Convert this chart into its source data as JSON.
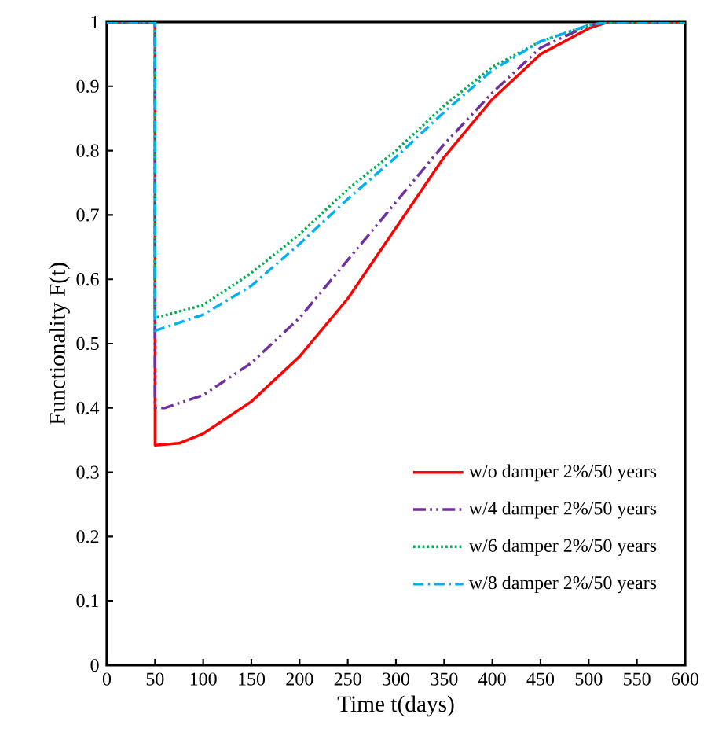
{
  "chart_data": {
    "type": "line",
    "xlabel": "Time t(days)",
    "ylabel": "Functionality F(t)",
    "xlim": [
      0,
      600
    ],
    "xticks": [
      0,
      50,
      100,
      150,
      200,
      250,
      300,
      350,
      400,
      450,
      500,
      550,
      600
    ],
    "ylim": [
      0,
      1
    ],
    "yticks": [
      0,
      0.1,
      0.2,
      0.3,
      0.4,
      0.5,
      0.6,
      0.7,
      0.8,
      0.9,
      1
    ],
    "grid": false,
    "legend": "bottom right",
    "marker": "none",
    "series": [
      {
        "name": "w/o damper 2%/50 years",
        "color": "#ff0000",
        "line_style": "solid",
        "x": [
          0,
          50,
          50,
          75,
          100,
          150,
          200,
          250,
          300,
          350,
          400,
          450,
          500,
          520,
          600
        ],
        "values": [
          1,
          1,
          0.342,
          0.345,
          0.36,
          0.41,
          0.48,
          0.57,
          0.68,
          0.79,
          0.88,
          0.95,
          0.99,
          1,
          1
        ]
      },
      {
        "name": "w/4 damper 2%/50 years",
        "color": "#7030a0",
        "line_style": "dashdotdot",
        "x": [
          0,
          50,
          50,
          60,
          100,
          150,
          200,
          250,
          300,
          350,
          400,
          450,
          500,
          520,
          600
        ],
        "values": [
          1,
          1,
          0.4,
          0.4,
          0.42,
          0.47,
          0.54,
          0.63,
          0.72,
          0.81,
          0.89,
          0.96,
          0.995,
          1,
          1
        ]
      },
      {
        "name": "w/6 damper 2%/50 years",
        "color": "#00b050",
        "line_style": "dotted",
        "x": [
          0,
          50,
          50,
          100,
          150,
          200,
          250,
          300,
          350,
          400,
          450,
          500,
          520,
          600
        ],
        "values": [
          1,
          1,
          0.54,
          0.56,
          0.61,
          0.67,
          0.74,
          0.8,
          0.87,
          0.93,
          0.97,
          0.995,
          1,
          1
        ]
      },
      {
        "name": "w/8 damper 2%/50 years",
        "color": "#00b0f0",
        "line_style": "dashdot",
        "x": [
          0,
          50,
          50,
          100,
          150,
          200,
          250,
          300,
          350,
          400,
          450,
          500,
          520,
          600
        ],
        "values": [
          1,
          1,
          0.52,
          0.545,
          0.59,
          0.655,
          0.725,
          0.79,
          0.86,
          0.925,
          0.97,
          0.995,
          1,
          1
        ]
      }
    ]
  }
}
